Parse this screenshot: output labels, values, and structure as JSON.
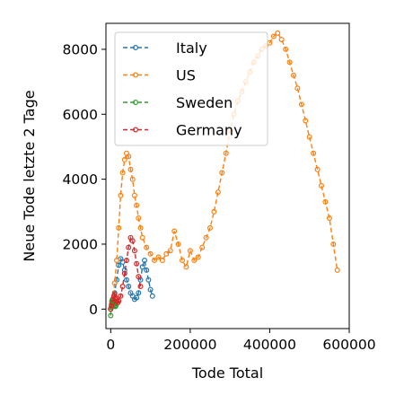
{
  "chart_data": {
    "type": "line",
    "xlabel": "Tode Total",
    "ylabel": "Neue Tode letzte 2 Tage",
    "xlim": [
      -12000,
      600000
    ],
    "ylim": [
      -600,
      8800
    ],
    "xticks": [
      0,
      200000,
      400000,
      600000
    ],
    "xtick_labels": [
      "0",
      "200000",
      "400000",
      "600000"
    ],
    "yticks": [
      0,
      2000,
      4000,
      6000,
      8000
    ],
    "ytick_labels": [
      "0",
      "2000",
      "4000",
      "6000",
      "8000"
    ],
    "line_style": "dashed",
    "marker": "open-circle",
    "grid": false,
    "legend_position": "upper-left",
    "series": [
      {
        "name": "Italy",
        "color": "#1f77b4",
        "x": [
          0,
          5000,
          10000,
          15000,
          20000,
          25000,
          30000,
          35000,
          40000,
          45000,
          50000,
          55000,
          60000,
          65000,
          70000,
          75000,
          80000,
          85000,
          90000,
          95000,
          100000,
          105000
        ],
        "y": [
          0,
          200,
          500,
          900,
          1350,
          1550,
          1450,
          1200,
          900,
          700,
          500,
          400,
          300,
          350,
          500,
          900,
          1300,
          1500,
          1200,
          900,
          600,
          400
        ]
      },
      {
        "name": "US",
        "color": "#ff7f0e",
        "x": [
          0,
          5000,
          10000,
          15000,
          20000,
          25000,
          30000,
          35000,
          40000,
          45000,
          50000,
          55000,
          60000,
          65000,
          70000,
          75000,
          80000,
          90000,
          100000,
          110000,
          120000,
          130000,
          140000,
          150000,
          160000,
          170000,
          180000,
          190000,
          200000,
          210000,
          220000,
          230000,
          240000,
          250000,
          260000,
          270000,
          280000,
          290000,
          300000,
          310000,
          320000,
          330000,
          340000,
          350000,
          360000,
          370000,
          380000,
          390000,
          400000,
          410000,
          420000,
          430000,
          440000,
          450000,
          460000,
          470000,
          480000,
          490000,
          500000,
          510000,
          520000,
          530000,
          540000,
          550000,
          560000,
          570000
        ],
        "y": [
          0,
          300,
          800,
          1500,
          2500,
          3500,
          4200,
          4600,
          4800,
          4700,
          4300,
          4000,
          3500,
          3200,
          2800,
          2500,
          2200,
          1900,
          1700,
          1500,
          1600,
          1500,
          1700,
          1800,
          2400,
          2000,
          1500,
          1300,
          1800,
          1500,
          1600,
          1900,
          2200,
          2500,
          3000,
          3600,
          4200,
          4800,
          5500,
          6000,
          6400,
          6700,
          7000,
          7300,
          7600,
          7800,
          8000,
          8100,
          8200,
          8400,
          8500,
          8300,
          8000,
          7600,
          7200,
          6800,
          6300,
          5800,
          5300,
          4800,
          4300,
          3800,
          3300,
          2800,
          2000,
          1200
        ]
      },
      {
        "name": "Sweden",
        "color": "#2ca02c",
        "x": [
          0,
          1000,
          2000,
          3000,
          4000,
          5000,
          6000,
          7000,
          8000,
          9000,
          10000,
          11000,
          12000,
          13000
        ],
        "y": [
          -200,
          50,
          150,
          250,
          180,
          300,
          120,
          200,
          250,
          150,
          100,
          180,
          80,
          120
        ]
      },
      {
        "name": "Germany",
        "color": "#d62728",
        "x": [
          0,
          2000,
          4000,
          6000,
          8000,
          10000,
          12000,
          14000,
          16000,
          18000,
          20000,
          25000,
          30000,
          35000,
          40000,
          45000,
          50000,
          55000,
          60000,
          65000,
          70000,
          75000
        ],
        "y": [
          0,
          100,
          200,
          300,
          400,
          450,
          350,
          300,
          250,
          200,
          250,
          400,
          700,
          1100,
          1500,
          1900,
          2200,
          2100,
          1800,
          1400,
          1000,
          700
        ]
      }
    ]
  }
}
